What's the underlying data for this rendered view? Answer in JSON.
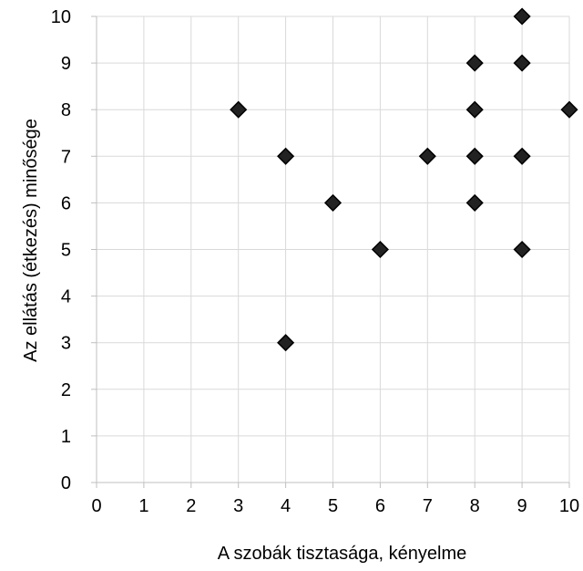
{
  "chart_data": {
    "type": "scatter",
    "title": "",
    "xlabel": "A szobák tisztasága, kényelme",
    "ylabel": "Az ellátás (étkezés) minősége",
    "xlim": [
      0,
      10
    ],
    "ylim": [
      0,
      10
    ],
    "x_ticks": [
      "0",
      "1",
      "2",
      "3",
      "4",
      "5",
      "6",
      "7",
      "8",
      "9",
      "10"
    ],
    "y_ticks": [
      "0",
      "1",
      "2",
      "3",
      "4",
      "5",
      "6",
      "7",
      "8",
      "9",
      "10"
    ],
    "grid": true,
    "legend": "none",
    "marker": "diamond",
    "marker_color": "#222222",
    "points": [
      {
        "x": 3,
        "y": 8
      },
      {
        "x": 4,
        "y": 7
      },
      {
        "x": 4,
        "y": 3
      },
      {
        "x": 5,
        "y": 6
      },
      {
        "x": 6,
        "y": 5
      },
      {
        "x": 7,
        "y": 7
      },
      {
        "x": 8,
        "y": 9
      },
      {
        "x": 8,
        "y": 8
      },
      {
        "x": 8,
        "y": 7
      },
      {
        "x": 8,
        "y": 6
      },
      {
        "x": 9,
        "y": 10
      },
      {
        "x": 9,
        "y": 9
      },
      {
        "x": 9,
        "y": 7
      },
      {
        "x": 9,
        "y": 5
      },
      {
        "x": 10,
        "y": 8
      }
    ]
  }
}
